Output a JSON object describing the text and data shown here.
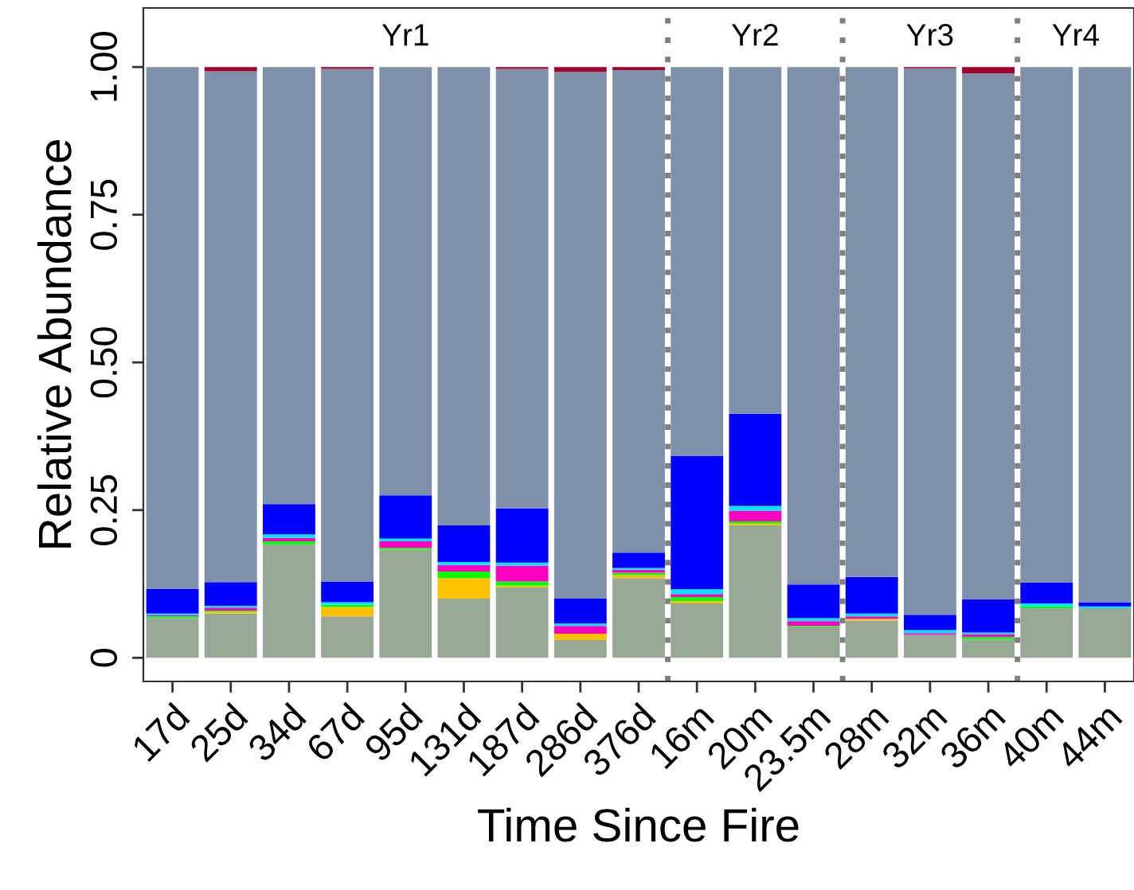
{
  "chart_data": {
    "type": "bar",
    "stacked": true,
    "xlabel": "Time Since Fire",
    "ylabel": "Relative Abundance",
    "categories": [
      "17d",
      "25d",
      "34d",
      "67d",
      "95d",
      "131d",
      "187d",
      "286d",
      "376d",
      "16m",
      "20m",
      "23.5m",
      "28m",
      "32m",
      "36m",
      "40m",
      "44m"
    ],
    "series": [
      {
        "color": "#97a897",
        "values": [
          0.067,
          0.075,
          0.192,
          0.07,
          0.183,
          0.1,
          0.119,
          0.03,
          0.135,
          0.092,
          0.224,
          0.052,
          0.063,
          0.039,
          0.031,
          0.084,
          0.084
        ]
      },
      {
        "color": "#ffc000",
        "values": [
          0,
          0.003,
          0,
          0.016,
          0,
          0.035,
          0.003,
          0.011,
          0.005,
          0.004,
          0.003,
          0,
          0.003,
          0,
          0,
          0,
          0
        ]
      },
      {
        "color": "#00ff00",
        "values": [
          0.003,
          0.002,
          0.005,
          0.004,
          0.003,
          0.011,
          0.007,
          0,
          0.004,
          0.007,
          0.004,
          0.002,
          0,
          0,
          0.004,
          0.003,
          0
        ]
      },
      {
        "color": "#ff00c0",
        "values": [
          0.002,
          0.005,
          0.006,
          0,
          0.011,
          0.011,
          0.027,
          0.013,
          0.005,
          0.005,
          0.018,
          0.008,
          0.004,
          0.003,
          0.005,
          0,
          0
        ]
      },
      {
        "color": "#00e5ff",
        "values": [
          0.003,
          0.003,
          0.006,
          0.004,
          0.005,
          0.005,
          0.005,
          0.004,
          0.003,
          0.008,
          0.008,
          0.005,
          0.005,
          0.005,
          0.003,
          0.005,
          0.003
        ]
      },
      {
        "color": "#0000ff",
        "values": [
          0.042,
          0.04,
          0.051,
          0.035,
          0.073,
          0.062,
          0.092,
          0.042,
          0.026,
          0.226,
          0.156,
          0.057,
          0.062,
          0.026,
          0.056,
          0.035,
          0.007
        ]
      },
      {
        "color": "#7f91aa",
        "values": [
          0.883,
          0.865,
          0.74,
          0.868,
          0.725,
          0.776,
          0.744,
          0.892,
          0.817,
          0.658,
          0.587,
          0.876,
          0.863,
          0.925,
          0.89,
          0.873,
          0.906
        ]
      },
      {
        "color": "#a0002a",
        "values": [
          0,
          0.007,
          0,
          0.003,
          0,
          0,
          0.003,
          0.008,
          0.005,
          0,
          0,
          0,
          0,
          0.002,
          0.011,
          0,
          0
        ]
      }
    ],
    "ylim": [
      -0.04,
      1.1
    ],
    "yticks": [
      0,
      {
        "value": 0.25,
        "label": "0.25"
      },
      {
        "value": 0.5,
        "label": "0.50"
      },
      {
        "value": 0.75,
        "label": "0.75"
      },
      {
        "value": 1,
        "label": "1.00"
      }
    ],
    "annotations": [
      "Yr1",
      "Yr2",
      "Yr3",
      "Yr4"
    ],
    "grid": false,
    "legend": false
  }
}
